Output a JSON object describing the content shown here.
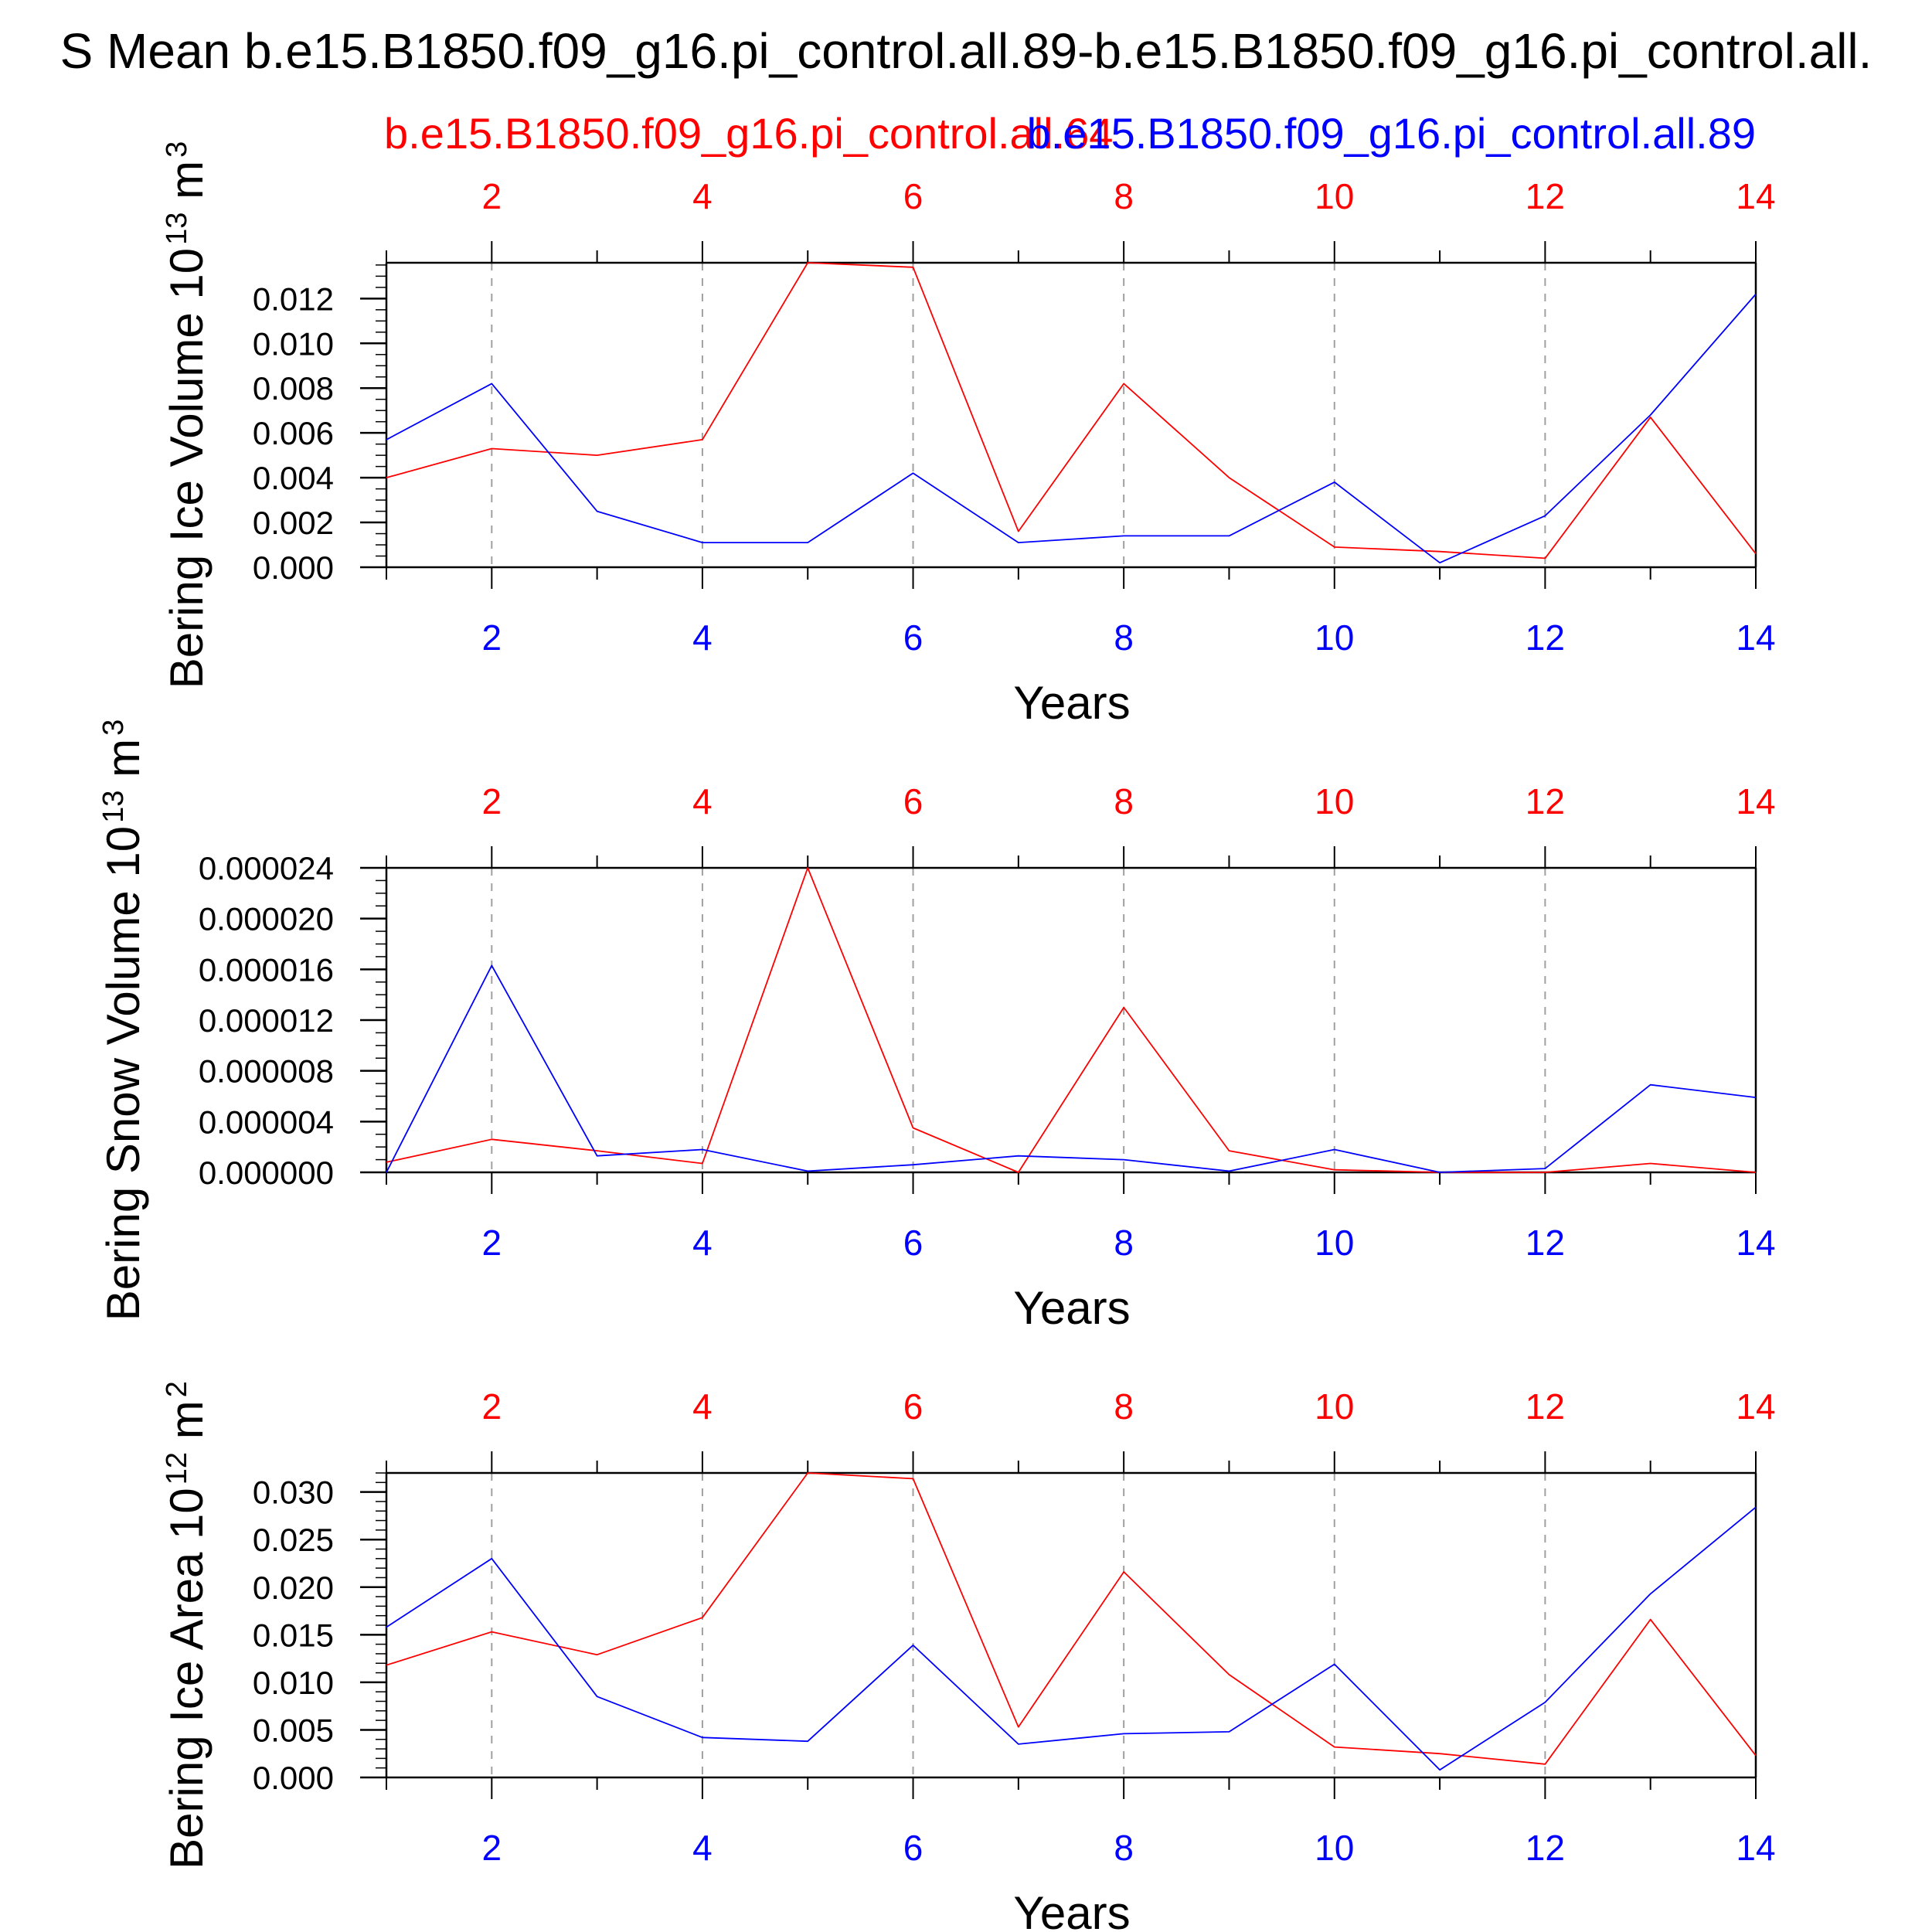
{
  "title": "S Mean b.e15.B1850.f09_g16.pi_control.all.89-b.e15.B1850.f09_g16.pi_control.all.",
  "series_labels": [
    {
      "text": "b.e15.B1850.f09_g16.pi_control.all.64",
      "color": "#ff0000"
    },
    {
      "text": "b.e15.B1850.f09_g16.pi_control.all.89",
      "color": "#0000ff"
    }
  ],
  "colors": {
    "red": "#ff0000",
    "blue": "#0000ff",
    "axis": "#000000",
    "grid": "#a0a0a0"
  },
  "chart_data": [
    {
      "type": "line",
      "ylabel_main": "Bering Ice Volume 10",
      "ylabel_exp": "13",
      "ylabel_unit": " m",
      "ylabel_unit_exp": "3",
      "xlabel": "Years",
      "x": [
        1,
        2,
        3,
        4,
        5,
        6,
        7,
        8,
        9,
        10,
        11,
        12,
        13,
        14
      ],
      "xlim": [
        1,
        14
      ],
      "x_ticks": [
        2,
        4,
        6,
        8,
        10,
        12,
        14
      ],
      "x_tick_labels": [
        "2",
        "4",
        "6",
        "8",
        "10",
        "12",
        "14"
      ],
      "ylim": [
        0,
        0.0136
      ],
      "y_ticks": [
        0,
        0.002,
        0.004,
        0.006,
        0.008,
        0.01,
        0.012
      ],
      "y_tick_labels": [
        "0.000",
        "0.002",
        "0.004",
        "0.006",
        "0.008",
        "0.010",
        "0.012"
      ],
      "y_minor_step": 0.0005,
      "grid": "dashed vertical at major x ticks",
      "series": [
        {
          "color": "red",
          "values": [
            0.004,
            0.0053,
            0.005,
            0.0057,
            0.0136,
            0.0134,
            0.0016,
            0.0082,
            0.004,
            0.0009,
            0.0007,
            0.0004,
            0.0067,
            0.0006
          ]
        },
        {
          "color": "blue",
          "values": [
            0.0057,
            0.0082,
            0.0025,
            0.0011,
            0.0011,
            0.0042,
            0.0011,
            0.0014,
            0.0014,
            0.0038,
            0.0002,
            0.0023,
            0.0068,
            0.0122
          ]
        }
      ]
    },
    {
      "type": "line",
      "ylabel_main": "Bering Snow Volume 10",
      "ylabel_exp": "13",
      "ylabel_unit": " m",
      "ylabel_unit_exp": "3",
      "xlabel": "Years",
      "x": [
        1,
        2,
        3,
        4,
        5,
        6,
        7,
        8,
        9,
        10,
        11,
        12,
        13,
        14
      ],
      "xlim": [
        1,
        14
      ],
      "x_ticks": [
        2,
        4,
        6,
        8,
        10,
        12,
        14
      ],
      "x_tick_labels": [
        "2",
        "4",
        "6",
        "8",
        "10",
        "12",
        "14"
      ],
      "ylim": [
        0,
        2.4e-05
      ],
      "y_ticks": [
        0,
        4e-06,
        8e-06,
        1.2e-05,
        1.6e-05,
        2e-05,
        2.4e-05
      ],
      "y_tick_labels": [
        "0.000000",
        "0.000004",
        "0.000008",
        "0.000012",
        "0.000016",
        "0.000020",
        "0.000024"
      ],
      "y_minor_step": 1e-06,
      "grid": "dashed vertical at major x ticks",
      "series": [
        {
          "color": "red",
          "values": [
            8e-07,
            2.6e-06,
            1.7e-06,
            7e-07,
            2.4e-05,
            3.5e-06,
            0.0,
            1.3e-05,
            1.7e-06,
            2e-07,
            0.0,
            0.0,
            7e-07,
            0.0
          ]
        },
        {
          "color": "blue",
          "values": [
            0.0,
            1.63e-05,
            1.3e-06,
            1.8e-06,
            1e-07,
            6e-07,
            1.3e-06,
            1e-06,
            1e-07,
            1.8e-06,
            0.0,
            3e-07,
            6.9e-06,
            5.9e-06
          ]
        }
      ]
    },
    {
      "type": "line",
      "ylabel_main": "Bering Ice Area 10",
      "ylabel_exp": "12",
      "ylabel_unit": " m",
      "ylabel_unit_exp": "2",
      "xlabel": "Years",
      "x": [
        1,
        2,
        3,
        4,
        5,
        6,
        7,
        8,
        9,
        10,
        11,
        12,
        13,
        14
      ],
      "xlim": [
        1,
        14
      ],
      "x_ticks": [
        2,
        4,
        6,
        8,
        10,
        12,
        14
      ],
      "x_tick_labels": [
        "2",
        "4",
        "6",
        "8",
        "10",
        "12",
        "14"
      ],
      "ylim": [
        0,
        0.032
      ],
      "y_ticks": [
        0,
        0.005,
        0.01,
        0.015,
        0.02,
        0.025,
        0.03
      ],
      "y_tick_labels": [
        "0.000",
        "0.005",
        "0.010",
        "0.015",
        "0.020",
        "0.025",
        "0.030"
      ],
      "y_minor_step": 0.001,
      "grid": "dashed vertical at major x ticks",
      "series": [
        {
          "color": "red",
          "values": [
            0.0118,
            0.0153,
            0.0129,
            0.0168,
            0.032,
            0.0314,
            0.0053,
            0.0216,
            0.0108,
            0.0032,
            0.0025,
            0.0014,
            0.0166,
            0.0023
          ]
        },
        {
          "color": "blue",
          "values": [
            0.0158,
            0.023,
            0.0085,
            0.0042,
            0.0038,
            0.0139,
            0.0035,
            0.0046,
            0.0048,
            0.0119,
            0.0008,
            0.0079,
            0.0193,
            0.0284
          ]
        }
      ]
    }
  ]
}
